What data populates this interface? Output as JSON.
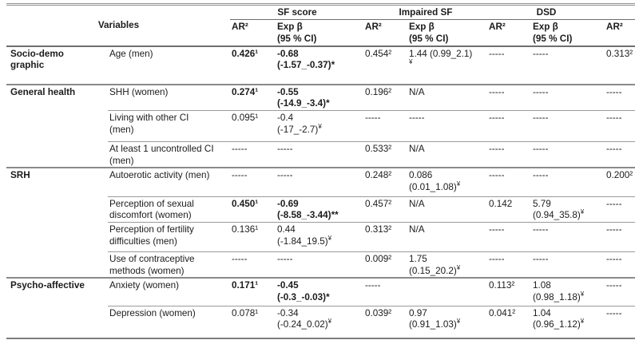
{
  "colors": {
    "rule_gray": "#8a8a8a",
    "text": "#1c1c1c",
    "background": "#ffffff"
  },
  "header": {
    "variables": "Variables",
    "groups": [
      "SF score",
      "Impaired SF",
      "DSD",
      ""
    ],
    "cols": [
      "AR²",
      "Exp β\n(95 % CI)",
      "AR²",
      "Exp β\n(95 % CI)",
      "AR²",
      "Exp β\n(95 % CI)",
      "AR²"
    ]
  },
  "sections": [
    {
      "category": "Socio-demo\ngraphic",
      "rows": [
        {
          "variable": "Age (men)",
          "cells": [
            "0.426¹",
            "-0.68\n(-1.57_-0.37)*",
            "0.454²",
            "1.44 (0.99_2.1)\n¥",
            "-----",
            "-----",
            "0.313²"
          ]
        }
      ]
    },
    {
      "category": "General health",
      "rows": [
        {
          "variable": "SHH (women)",
          "cells": [
            "0.274¹",
            "-0.55\n(-14.9_-3.4)*",
            "0.196²",
            "N/A",
            "-----",
            "-----",
            "-----"
          ]
        },
        {
          "variable": "Living with other CI\n(men)",
          "cells": [
            "0.095¹",
            "-0.4\n(-17_-2.7)¥",
            "-----",
            "-----",
            "-----",
            "-----",
            "-----"
          ]
        },
        {
          "variable": "At least 1 uncontrolled CI\n(men)",
          "cells": [
            "-----",
            "-----",
            "0.533²",
            "N/A",
            "-----",
            "-----",
            "-----"
          ]
        }
      ]
    },
    {
      "category": "SRH",
      "rows": [
        {
          "variable": "Autoerotic activity (men)",
          "cells": [
            "-----",
            "-----",
            "0.248²",
            "0.086\n(0.01_1.08)¥",
            "-----",
            "-----",
            "0.200²"
          ]
        },
        {
          "variable": "Perception of sexual\ndiscomfort (women)",
          "cells": [
            "0.450¹",
            "-0.69\n(-8.58_-3.44)**",
            "0.457²",
            "N/A",
            "0.142",
            "5.79\n(0.94_35.8)¥",
            "-----"
          ]
        },
        {
          "variable": "Perception of fertility\ndifficulties (men)",
          "cells": [
            "0.136¹",
            "0.44\n(-1.84_19.5)¥",
            "0.313²",
            "N/A",
            "-----",
            "-----",
            "-----"
          ]
        },
        {
          "variable": "Use of contraceptive\nmethods (women)",
          "cells": [
            "-----",
            "-----",
            "0.009²",
            "1.75\n(0.15_20.2)¥",
            "-----",
            "-----",
            "-----"
          ]
        }
      ]
    },
    {
      "category": "Psycho-affective",
      "rows": [
        {
          "variable": "Anxiety (women)",
          "cells": [
            "0.171¹",
            "-0.45\n(-0.3_-0.03)*",
            "-----",
            "",
            "0.113²",
            "1.08\n(0.98_1.18)¥",
            "-----"
          ]
        },
        {
          "variable": "Depression (women)",
          "cells": [
            "0.078¹",
            "-0.34\n(-0.24_0.02)¥",
            "0.039²",
            "0.97\n(0.91_1.03)¥",
            "0.041²",
            "1.04\n(0.96_1.12)¥",
            "-----"
          ]
        }
      ]
    }
  ]
}
